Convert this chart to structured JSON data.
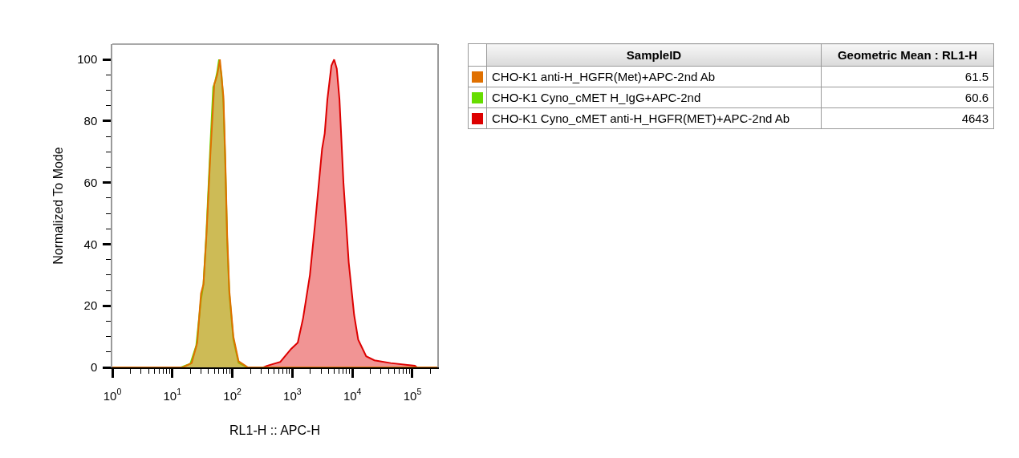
{
  "chart_data": {
    "type": "area",
    "xlabel": "RL1-H :: APC-H",
    "ylabel": "Normalized To Mode",
    "legend_title": "SampleID",
    "legend": "top right",
    "log": "x",
    "xlim": [
      1,
      260000
    ],
    "xticks": [
      {
        "value": 1,
        "label": "10$^{0}$"
      },
      {
        "value": 2,
        "label": null
      },
      {
        "value": 3,
        "label": null
      },
      {
        "value": 4,
        "label": null
      },
      {
        "value": 5,
        "label": null
      },
      {
        "value": 6,
        "label": null
      },
      {
        "value": 7,
        "label": null
      },
      {
        "value": 8,
        "label": null
      },
      {
        "value": 9,
        "label": null
      },
      {
        "value": 10,
        "label": "10$^{1}$"
      },
      {
        "value": 20,
        "label": null
      },
      {
        "value": 30,
        "label": null
      },
      {
        "value": 40,
        "label": null
      },
      {
        "value": 50,
        "label": null
      },
      {
        "value": 60,
        "label": null
      },
      {
        "value": 70,
        "label": null
      },
      {
        "value": 80,
        "label": null
      },
      {
        "value": 90,
        "label": null
      },
      {
        "value": 100,
        "label": "10$^{2}$"
      },
      {
        "value": 200,
        "label": null
      },
      {
        "value": 300,
        "label": null
      },
      {
        "value": 400,
        "label": null
      },
      {
        "value": 500,
        "label": null
      },
      {
        "value": 600,
        "label": null
      },
      {
        "value": 700,
        "label": null
      },
      {
        "value": 800,
        "label": null
      },
      {
        "value": 900,
        "label": null
      },
      {
        "value": 1000,
        "label": "10$^{3}$"
      },
      {
        "value": 2000,
        "label": null
      },
      {
        "value": 3000,
        "label": null
      },
      {
        "value": 4000,
        "label": null
      },
      {
        "value": 5000,
        "label": null
      },
      {
        "value": 6000,
        "label": null
      },
      {
        "value": 7000,
        "label": null
      },
      {
        "value": 8000,
        "label": null
      },
      {
        "value": 9000,
        "label": null
      },
      {
        "value": 10000,
        "label": "10$^{4}$"
      },
      {
        "value": 20000,
        "label": null
      },
      {
        "value": 30000,
        "label": null
      },
      {
        "value": 40000,
        "label": null
      },
      {
        "value": 50000,
        "label": null
      },
      {
        "value": 60000,
        "label": null
      },
      {
        "value": 70000,
        "label": null
      },
      {
        "value": 80000,
        "label": null
      },
      {
        "value": 90000,
        "label": null
      },
      {
        "value": 100000,
        "label": "10$^{5}$"
      },
      {
        "value": 200000,
        "label": null
      }
    ],
    "ylim": [
      0,
      105
    ],
    "yticks": [
      0,
      {
        "value": 5,
        "label": null
      },
      {
        "value": 10,
        "label": null
      },
      {
        "value": 15,
        "label": null
      },
      20,
      {
        "value": 25,
        "label": null
      },
      {
        "value": 30,
        "label": null
      },
      {
        "value": 35,
        "label": null
      },
      40,
      {
        "value": 45,
        "label": null
      },
      {
        "value": 50,
        "label": null
      },
      {
        "value": 55,
        "label": null
      },
      60,
      {
        "value": 65,
        "label": null
      },
      {
        "value": 70,
        "label": null
      },
      {
        "value": 75,
        "label": null
      },
      80,
      {
        "value": 85,
        "label": null
      },
      {
        "value": 90,
        "label": null
      },
      {
        "value": 95,
        "label": null
      },
      100
    ],
    "annotations": [
      "Geometric Mean : RL1-H",
      "61.5",
      "60.6",
      "4643"
    ],
    "series": [
      {
        "name": "CHO-K1 anti-H_HGFR(Met)+APC-2nd Ab",
        "color": "#e07000",
        "x": [
          1,
          15,
          21,
          26,
          30,
          33,
          37,
          43,
          50,
          56,
          62,
          71,
          76,
          82,
          89,
          104,
          127,
          182,
          260000
        ],
        "values": [
          0,
          0,
          1.4,
          8,
          24,
          27,
          43,
          69,
          92,
          95,
          100,
          88,
          69,
          43,
          25,
          10,
          2,
          0,
          0
        ]
      },
      {
        "name": "CHO-K1 Cyno_cMET H_IgG+APC-2nd",
        "color": "#66dd00",
        "x": [
          14,
          20,
          25,
          30,
          33,
          37,
          43,
          48,
          52,
          56,
          60,
          66,
          71,
          76,
          82,
          89,
          104,
          127,
          175
        ],
        "values": [
          0,
          1.2,
          7,
          22,
          27,
          44,
          72,
          91,
          93,
          96,
          100,
          95,
          86,
          67,
          41,
          24,
          9,
          1.5,
          0
        ]
      },
      {
        "name": "CHO-K1 Cyno_cMET anti-H_HGFR(MET)+APC-2nd Ab",
        "color": "#dd0000",
        "x": [
          330,
          376,
          630,
          955,
          1230,
          1510,
          1960,
          2400,
          3130,
          3460,
          3830,
          4470,
          4970,
          5500,
          6100,
          7100,
          8700,
          10700,
          12500,
          17000,
          23300,
          43500,
          110000,
          120000
        ],
        "values": [
          0,
          0.5,
          1.8,
          6,
          8,
          16,
          30,
          47,
          71,
          76,
          87,
          98,
          100,
          97,
          87,
          60,
          34,
          17,
          9,
          3.6,
          2.3,
          1.4,
          0.5,
          0
        ]
      }
    ]
  }
}
